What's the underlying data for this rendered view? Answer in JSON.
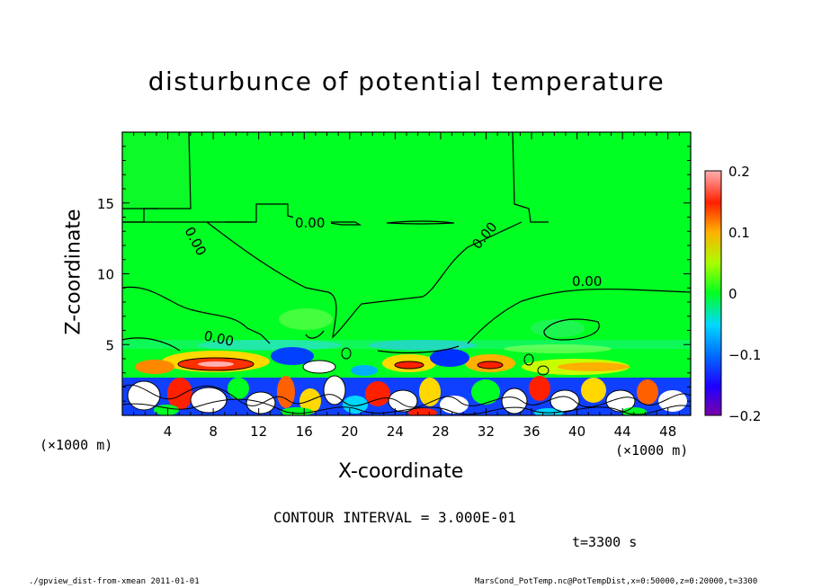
{
  "chart_data": {
    "type": "heatmap",
    "title": "disturbunce of potential temperature",
    "xlabel": "X-coordinate",
    "ylabel": "Z-coordinate",
    "x_units": "(×1000 m)",
    "z_units": "(×1000 m)",
    "xlim": [
      0,
      50
    ],
    "ylim": [
      0,
      20
    ],
    "x_ticks": [
      4,
      8,
      12,
      16,
      20,
      24,
      28,
      32,
      36,
      40,
      44,
      48
    ],
    "y_ticks": [
      5,
      10,
      15
    ],
    "colorbar": {
      "range": [
        -0.2,
        0.2
      ],
      "tick_labels": [
        "0.2",
        "0.1",
        "0",
        "−0.1",
        "−0.2"
      ],
      "tick_values": [
        0.2,
        0.1,
        0,
        -0.1,
        -0.2
      ]
    },
    "contour_labels": [
      "0.00",
      "0.00",
      "0.00",
      "0.00",
      "0.00",
      "0.00"
    ],
    "contour_interval": "CONTOUR INTERVAL = 3.000E-01",
    "time": "t=3300 s"
  },
  "footer": {
    "left": "./gpview_dist-from-xmean  2011-01-01",
    "right": "MarsCond_PotTemp.nc@PotTempDist,x=0:50000,z=0:20000,t=3300"
  },
  "colors": {
    "background_field": "#00ff22",
    "contour_line": "#000000"
  }
}
